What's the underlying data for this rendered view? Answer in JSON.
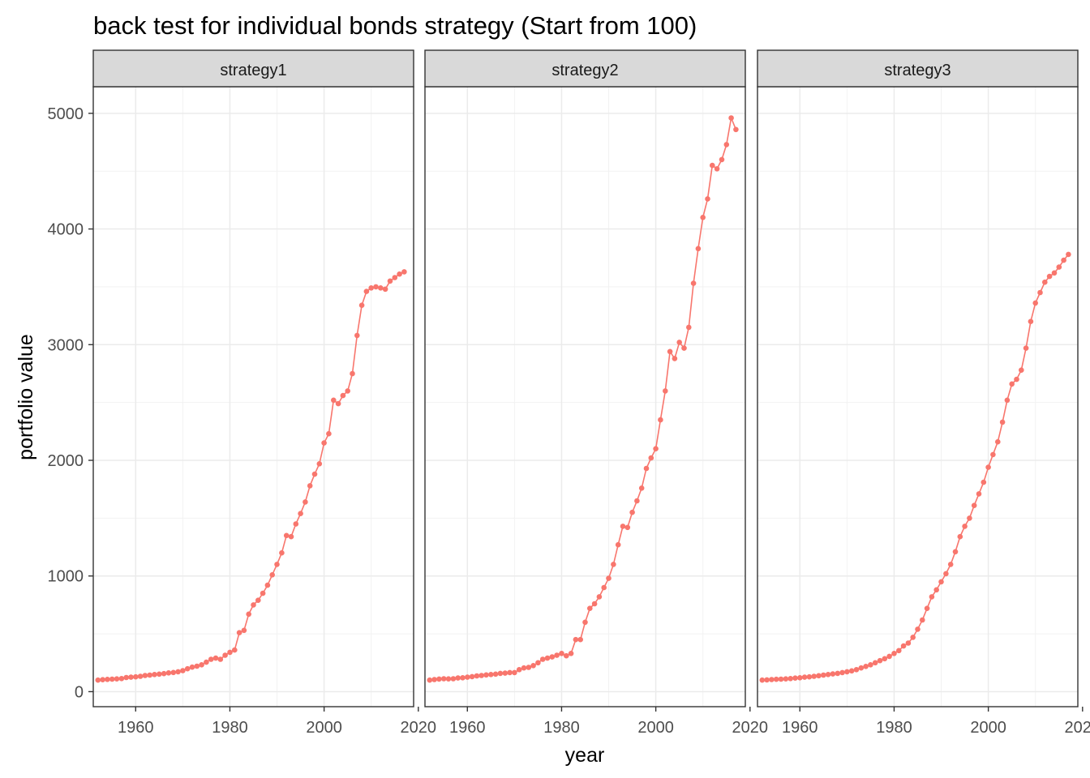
{
  "chart_data": {
    "type": "line",
    "title": "back test for individual bonds strategy (Start from 100)",
    "xlabel": "year",
    "ylabel": "portfolio value",
    "xlim": [
      1951,
      2019
    ],
    "ylim": [
      -130,
      5230
    ],
    "x_ticks": [
      1960,
      1980,
      2000,
      2020
    ],
    "x_tick_labels": [
      "1960",
      "1980",
      "2000",
      "2020"
    ],
    "y_ticks": [
      0,
      1000,
      2000,
      3000,
      4000,
      5000
    ],
    "y_tick_labels": [
      "0",
      "1000",
      "2000",
      "3000",
      "4000",
      "5000"
    ],
    "grid": true,
    "legend": "none",
    "series_color": "#F8766D",
    "facets": [
      {
        "label": "strategy1",
        "x": [
          1952,
          1953,
          1954,
          1955,
          1956,
          1957,
          1958,
          1959,
          1960,
          1961,
          1962,
          1963,
          1964,
          1965,
          1966,
          1967,
          1968,
          1969,
          1970,
          1971,
          1972,
          1973,
          1974,
          1975,
          1976,
          1977,
          1978,
          1979,
          1980,
          1981,
          1982,
          1983,
          1984,
          1985,
          1986,
          1987,
          1988,
          1989,
          1990,
          1991,
          1992,
          1993,
          1994,
          1995,
          1996,
          1997,
          1998,
          1999,
          2000,
          2001,
          2002,
          2003,
          2004,
          2005,
          2006,
          2007,
          2008,
          2009,
          2010,
          2011,
          2012,
          2013,
          2014,
          2015,
          2016,
          2017
        ],
        "values": [
          100,
          103,
          106,
          108,
          110,
          113,
          122,
          125,
          128,
          133,
          140,
          143,
          148,
          152,
          156,
          162,
          166,
          172,
          182,
          198,
          212,
          220,
          232,
          255,
          280,
          290,
          280,
          315,
          340,
          360,
          510,
          530,
          670,
          750,
          790,
          850,
          920,
          1010,
          1100,
          1200,
          1350,
          1340,
          1450,
          1540,
          1640,
          1780,
          1880,
          1970,
          2150,
          2230,
          2520,
          2490,
          2560,
          2600,
          2750,
          3080,
          3340,
          3460,
          3490,
          3500,
          3490,
          3480,
          3550,
          3580,
          3610,
          3630
        ]
      },
      {
        "label": "strategy2",
        "x": [
          1952,
          1953,
          1954,
          1955,
          1956,
          1957,
          1958,
          1959,
          1960,
          1961,
          1962,
          1963,
          1964,
          1965,
          1966,
          1967,
          1968,
          1969,
          1970,
          1971,
          1972,
          1973,
          1974,
          1975,
          1976,
          1977,
          1978,
          1979,
          1980,
          1981,
          1982,
          1983,
          1984,
          1985,
          1986,
          1987,
          1988,
          1989,
          1990,
          1991,
          1992,
          1993,
          1994,
          1995,
          1996,
          1997,
          1998,
          1999,
          2000,
          2001,
          2002,
          2003,
          2004,
          2005,
          2006,
          2007,
          2008,
          2009,
          2010,
          2011,
          2012,
          2013,
          2014,
          2015,
          2016,
          2017
        ],
        "values": [
          100,
          105,
          109,
          112,
          110,
          112,
          118,
          120,
          125,
          130,
          136,
          140,
          145,
          148,
          152,
          158,
          160,
          165,
          165,
          190,
          205,
          210,
          225,
          250,
          280,
          290,
          300,
          315,
          330,
          310,
          330,
          450,
          450,
          600,
          720,
          760,
          820,
          900,
          980,
          1100,
          1270,
          1430,
          1420,
          1550,
          1650,
          1760,
          1930,
          2020,
          2100,
          2350,
          2600,
          2940,
          2880,
          3020,
          2970,
          3150,
          3530,
          3830,
          4100,
          4260,
          4550,
          4520,
          4600,
          4730,
          4960,
          4860
        ]
      },
      {
        "label": "strategy3",
        "x": [
          1952,
          1953,
          1954,
          1955,
          1956,
          1957,
          1958,
          1959,
          1960,
          1961,
          1962,
          1963,
          1964,
          1965,
          1966,
          1967,
          1968,
          1969,
          1970,
          1971,
          1972,
          1973,
          1974,
          1975,
          1976,
          1977,
          1978,
          1979,
          1980,
          1981,
          1982,
          1983,
          1984,
          1985,
          1986,
          1987,
          1988,
          1989,
          1990,
          1991,
          1992,
          1993,
          1994,
          1995,
          1996,
          1997,
          1998,
          1999,
          2000,
          2001,
          2002,
          2003,
          2004,
          2005,
          2006,
          2007,
          2008,
          2009,
          2010,
          2011,
          2012,
          2013,
          2014,
          2015,
          2016,
          2017
        ],
        "values": [
          100,
          102,
          105,
          107,
          108,
          110,
          113,
          117,
          120,
          125,
          128,
          133,
          138,
          143,
          148,
          153,
          158,
          165,
          172,
          180,
          190,
          205,
          218,
          232,
          250,
          268,
          285,
          305,
          330,
          355,
          395,
          420,
          470,
          540,
          620,
          720,
          820,
          880,
          950,
          1020,
          1100,
          1210,
          1340,
          1430,
          1500,
          1610,
          1710,
          1810,
          1940,
          2050,
          2160,
          2330,
          2520,
          2660,
          2700,
          2780,
          2970,
          3200,
          3360,
          3450,
          3540,
          3590,
          3620,
          3670,
          3730,
          3780
        ]
      }
    ]
  }
}
